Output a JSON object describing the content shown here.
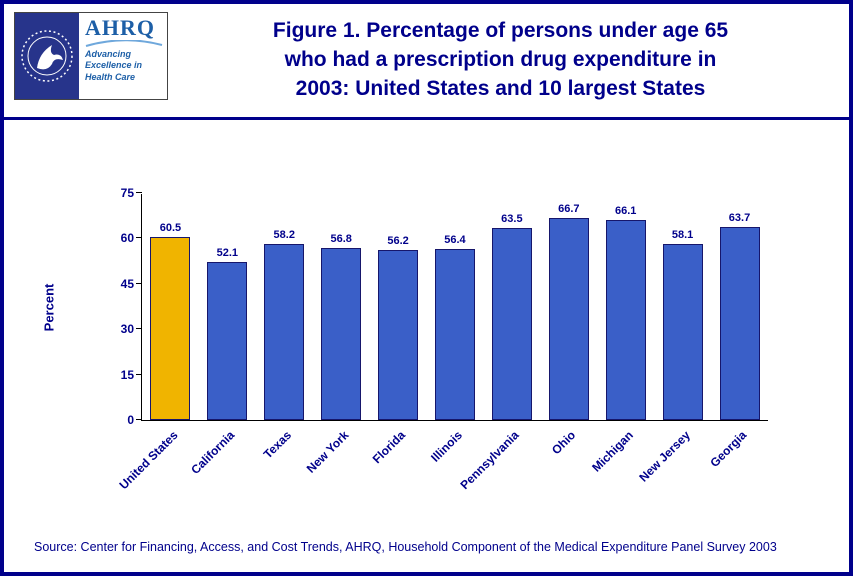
{
  "header": {
    "title_lines": [
      "Figure 1. Percentage of persons under age 65",
      "who had a prescription drug expenditure in",
      "2003: United States and 10 largest States"
    ],
    "logos": {
      "ahrq_wordmark": "AHRQ",
      "ahrq_tagline_lines": [
        "Advancing",
        "Excellence in",
        "Health Care"
      ]
    }
  },
  "chart_data": {
    "type": "bar",
    "title": "Figure 1. Percentage of persons under age 65 who had a prescription drug expenditure in 2003: United States and 10 largest States",
    "categories": [
      "United States",
      "California",
      "Texas",
      "New York",
      "Florida",
      "Illinois",
      "Pennsylvania",
      "Ohio",
      "Michigan",
      "New Jersey",
      "Georgia"
    ],
    "values": [
      60.5,
      52.1,
      58.2,
      56.8,
      56.2,
      56.4,
      63.5,
      66.7,
      66.1,
      58.1,
      63.7
    ],
    "xlabel": "",
    "ylabel": "Percent",
    "ylim": [
      0,
      75
    ],
    "yticks": [
      0,
      15,
      30,
      45,
      60,
      75
    ],
    "grid": false,
    "legend": "none",
    "value_labels": true,
    "highlight_index": 0,
    "colors": {
      "bar_default": "#3A5FC8",
      "bar_highlight": "#F0B400",
      "bar_border": "#16166B",
      "text": "#00008B"
    }
  },
  "footer": {
    "source": "Source: Center for Financing, Access, and Cost Trends, AHRQ, Household Component of the Medical Expenditure Panel Survey 2003"
  }
}
